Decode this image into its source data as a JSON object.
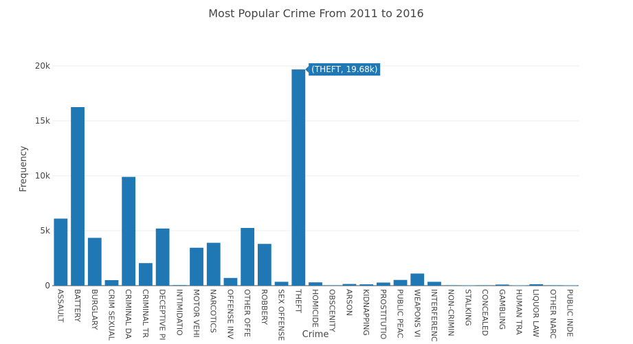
{
  "chart_data": {
    "type": "bar",
    "title": "Most Popular Crime From 2011 to 2016",
    "xlabel": "Crime",
    "ylabel": "Frequency",
    "ylim": [
      0,
      21000
    ],
    "yticks": [
      0,
      5000,
      10000,
      15000,
      20000
    ],
    "ytick_labels": [
      "0",
      "5k",
      "10k",
      "15k",
      "20k"
    ],
    "grid": true,
    "bar_color": "#1f77b4",
    "categories": [
      "ASSAULT",
      "BATTERY",
      "BURGLARY",
      "CRIM SEXUAL",
      "CRIMINAL DA",
      "CRIMINAL TR",
      "DECEPTIVE PI",
      "INTIMIDATIO",
      "MOTOR VEHI",
      "NARCOTICS",
      "OFFENSE INV",
      "OTHER OFFE",
      "ROBBERY",
      "SEX OFFENSE",
      "THEFT",
      "HOMICIDE",
      "OBSCENITY",
      "ARSON",
      "KIDNAPPING",
      "PROSTITUTIO",
      "PUBLIC PEAC",
      "WEAPONS VI",
      "INTERFERENC",
      "NON-CRIMIN",
      "STALKING",
      "CONCEALED",
      "GAMBLING",
      "HUMAN TRA",
      "LIQUOR LAW",
      "OTHER NARC",
      "PUBLIC INDE"
    ],
    "values": [
      6100,
      16250,
      4350,
      500,
      9900,
      2050,
      5200,
      50,
      3450,
      3900,
      700,
      5250,
      3800,
      350,
      19680,
      300,
      40,
      150,
      120,
      280,
      520,
      1100,
      350,
      40,
      30,
      40,
      100,
      30,
      130,
      40,
      30
    ],
    "hover": {
      "category": "THEFT",
      "label": "(THEFT, 19.68k)"
    }
  }
}
